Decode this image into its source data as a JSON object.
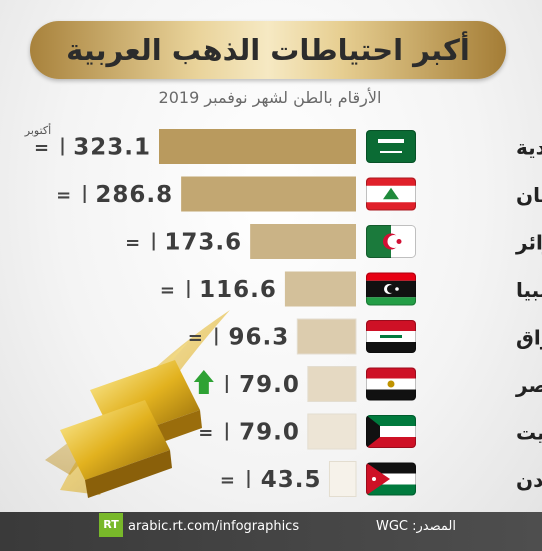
{
  "header": {
    "title": "أكبر احتياطات الذهب العربية",
    "subtitle": "الأرقام بالطن لشهر نوفمبر 2019"
  },
  "annotation": {
    "text": "أكتوبر"
  },
  "footer": {
    "site": "arabic.rt.com/infographics",
    "source": "المصدر: WGC",
    "logo": "RT"
  },
  "colors": {
    "bar_dark": "#b99a5e",
    "bar_light": "#f6f2ea",
    "value_text": "#3d3d3d",
    "trend_up": "#2ea234"
  },
  "chart_data": {
    "type": "bar",
    "orientation": "horizontal",
    "unit": "طن",
    "categories": [
      "السعودية",
      "لبنان",
      "الجزائر",
      "ليبيا",
      "العراق",
      "مصر",
      "الكويت",
      "الأردن"
    ],
    "values": [
      323.1,
      286.8,
      173.6,
      116.6,
      96.3,
      79.0,
      79.0,
      43.5
    ],
    "value_labels": [
      "323.1",
      "286.8",
      "173.6",
      "116.6",
      "96.3",
      "79.0",
      "79.0",
      "43.5"
    ],
    "change_vs_october": [
      "=",
      "=",
      "=",
      "=",
      "=",
      "up",
      "=",
      "="
    ],
    "flags": [
      "saudi-flag",
      "lebanon-flag",
      "algeria-flag",
      "libya-flag",
      "iraq-flag",
      "egypt-flag",
      "kuwait-flag",
      "jordan-flag"
    ]
  }
}
